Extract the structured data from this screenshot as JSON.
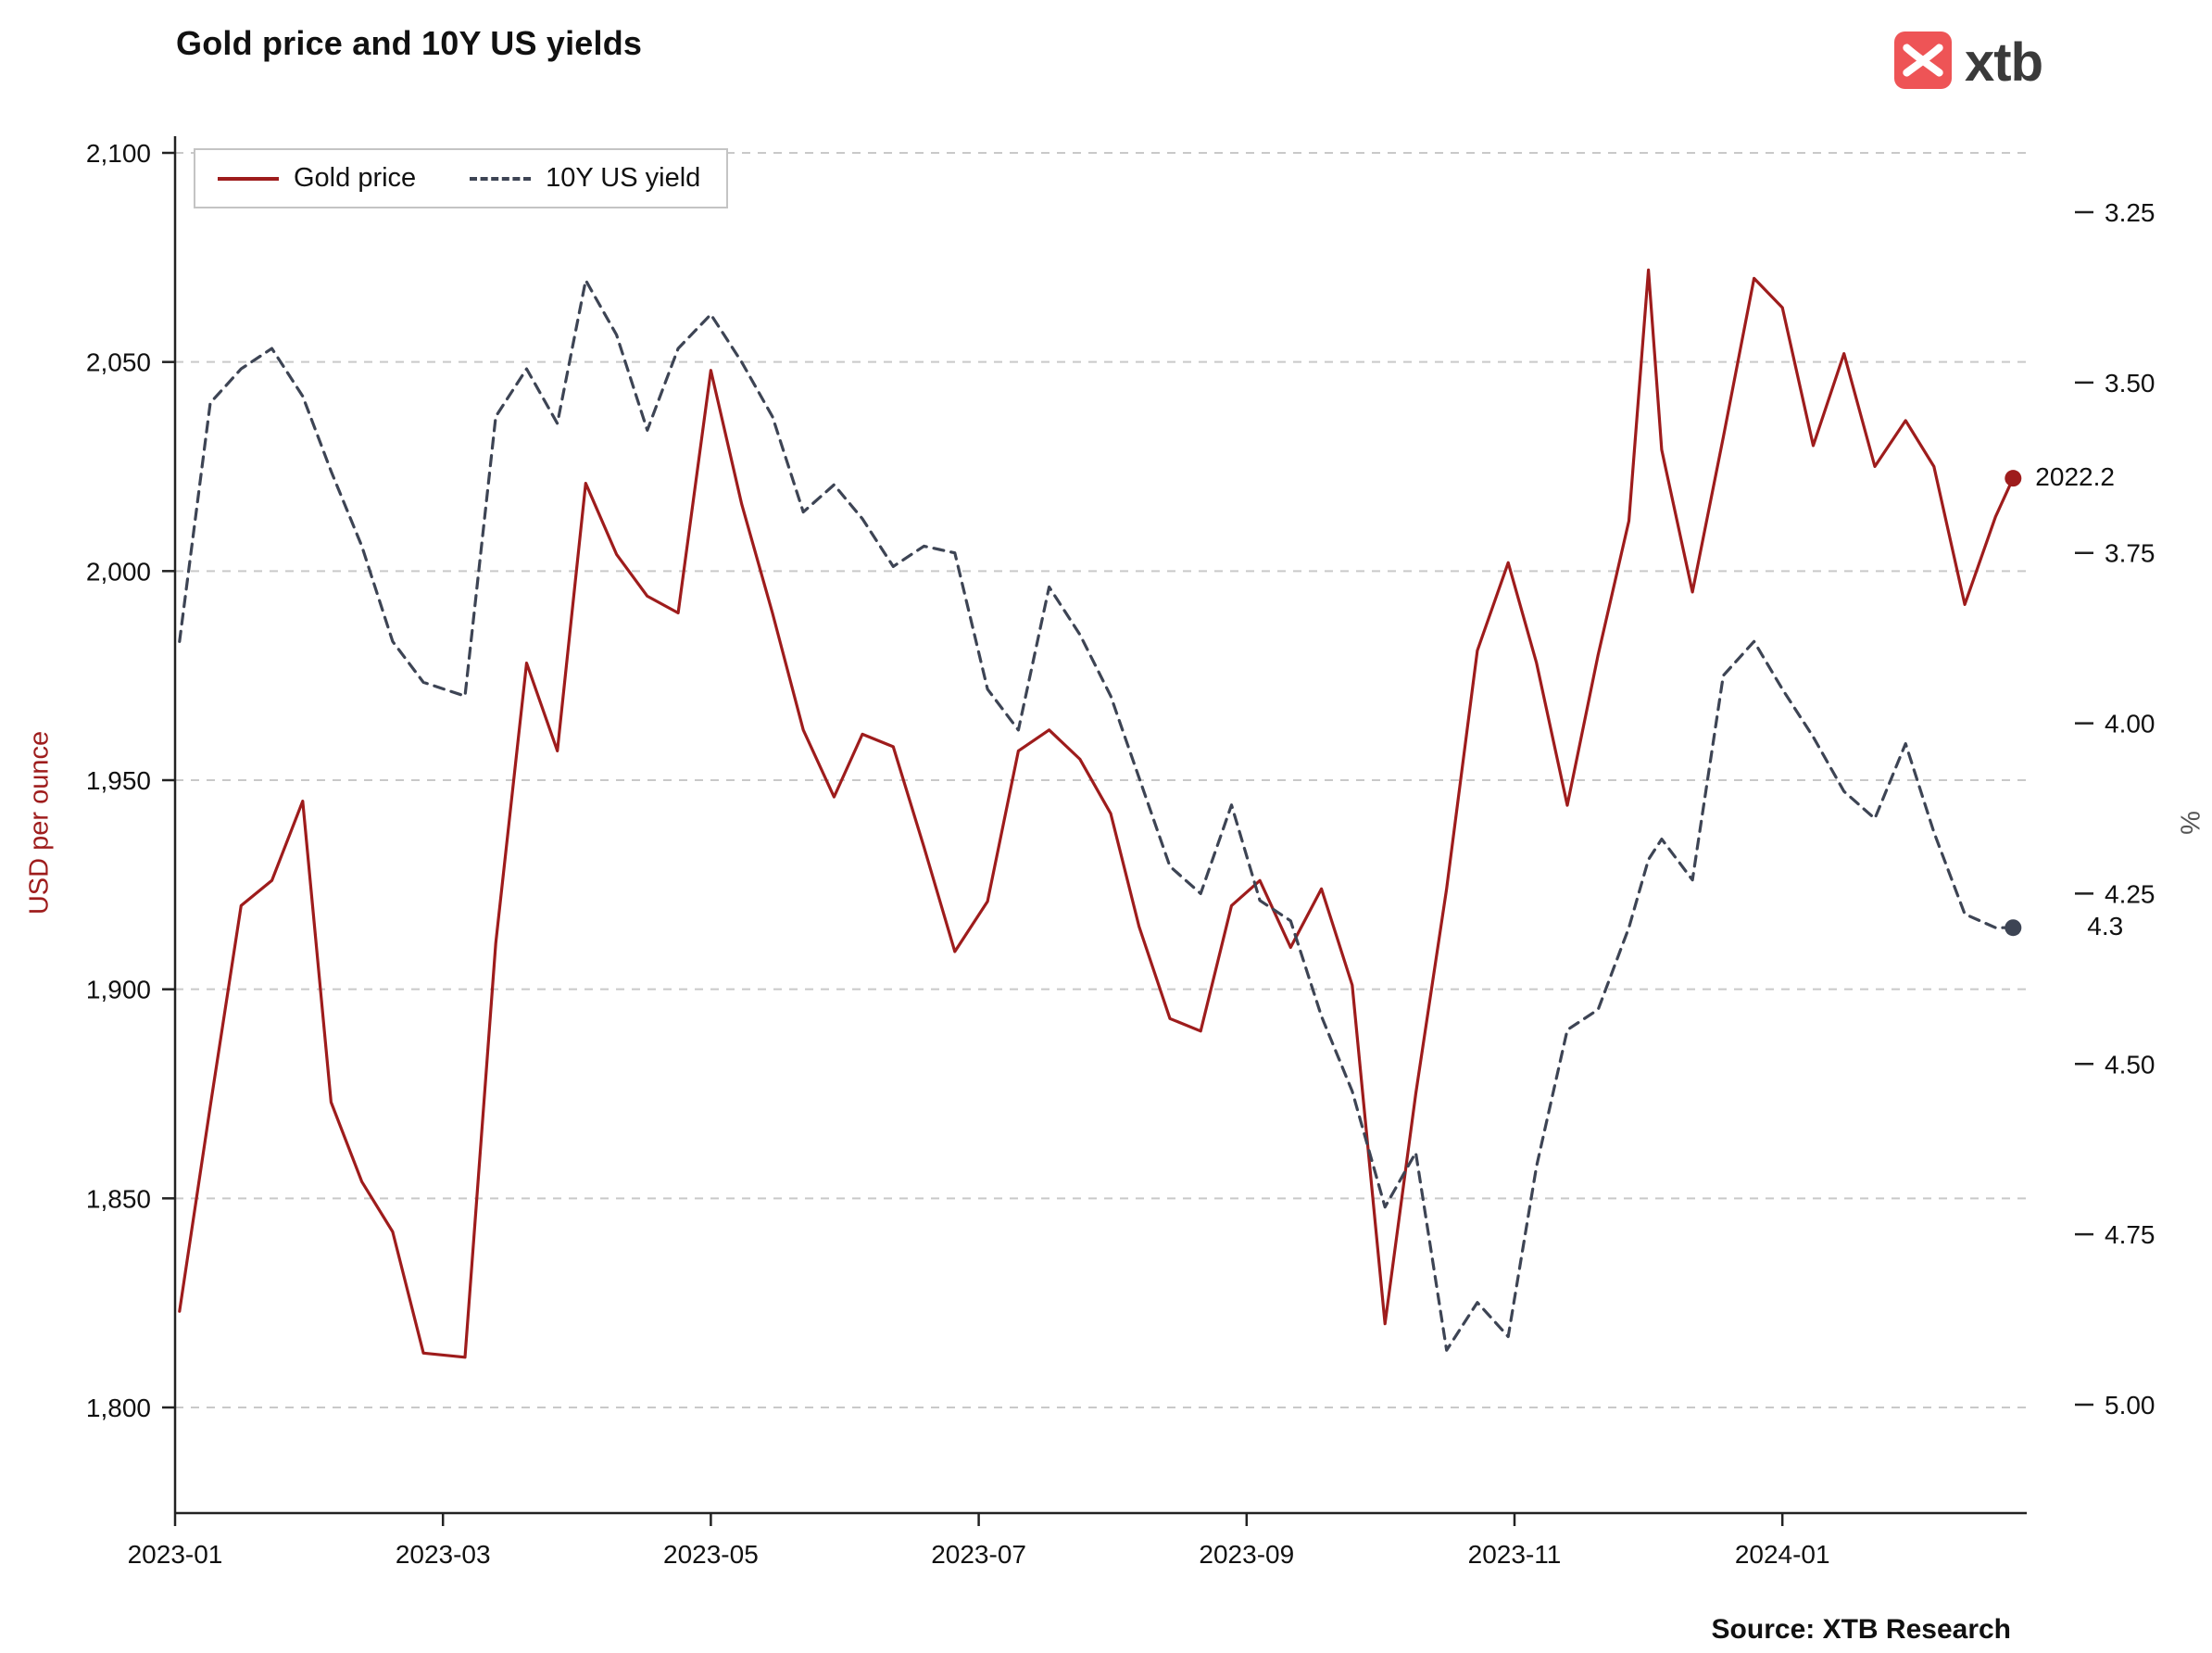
{
  "logo": {
    "text": "xtb",
    "brand_color": "#ee5456"
  },
  "source": "Source: XTB Research",
  "chart_data": {
    "type": "line",
    "title": "Gold price and 10Y US yields",
    "grid": "horizontal-dashed",
    "legend_position": "top-left-inside",
    "x_ticks": [
      "2023-01-01",
      "2023-03-01",
      "2023-05-01",
      "2023-07-01",
      "2023-09-01",
      "2023-11-01",
      "2024-01-01"
    ],
    "x_tick_labels": [
      "2023-01",
      "2023-03",
      "2023-05",
      "2023-07",
      "2023-09",
      "2023-11",
      "2024-01"
    ],
    "left_axis": {
      "label": "USD per ounce",
      "color": "#9e1c1c",
      "ticks": [
        1800,
        1850,
        1900,
        1950,
        2000,
        2050,
        2100
      ],
      "tick_labels": [
        "1,800",
        "1,850",
        "1,900",
        "1,950",
        "2,000",
        "2,050",
        "2,100"
      ],
      "range": [
        1775,
        2101
      ]
    },
    "right_axis": {
      "label": "%",
      "color": "#555555",
      "reversed": true,
      "ticks": [
        3.25,
        3.5,
        3.75,
        4.0,
        4.25,
        4.5,
        4.75,
        5.0
      ],
      "tick_labels": [
        "3.25",
        "3.50",
        "3.75",
        "4.00",
        "4.25",
        "4.50",
        "4.75",
        "5.00"
      ],
      "range": [
        3.2,
        5.05
      ]
    },
    "x": [
      "2023-01-02",
      "2023-01-09",
      "2023-01-16",
      "2023-01-23",
      "2023-01-30",
      "2023-02-06",
      "2023-02-13",
      "2023-02-20",
      "2023-02-27",
      "2023-03-06",
      "2023-03-13",
      "2023-03-20",
      "2023-03-27",
      "2023-04-03",
      "2023-04-10",
      "2023-04-17",
      "2023-04-24",
      "2023-05-01",
      "2023-05-08",
      "2023-05-15",
      "2023-05-22",
      "2023-05-29",
      "2023-06-05",
      "2023-06-12",
      "2023-06-19",
      "2023-06-26",
      "2023-07-03",
      "2023-07-10",
      "2023-07-17",
      "2023-07-24",
      "2023-07-31",
      "2023-08-07",
      "2023-08-14",
      "2023-08-21",
      "2023-08-28",
      "2023-09-04",
      "2023-09-11",
      "2023-09-18",
      "2023-09-25",
      "2023-10-02",
      "2023-10-09",
      "2023-10-16",
      "2023-10-23",
      "2023-10-30",
      "2023-11-06",
      "2023-11-13",
      "2023-11-20",
      "2023-11-27",
      "2023-12-01",
      "2023-12-04",
      "2023-12-11",
      "2023-12-18",
      "2023-12-25",
      "2024-01-01",
      "2024-01-08",
      "2024-01-15",
      "2024-01-22",
      "2024-01-29",
      "2024-02-05",
      "2024-02-12",
      "2024-02-19",
      "2024-02-23"
    ],
    "series": [
      {
        "name": "Gold price",
        "axis": "left",
        "unit": "USD per ounce",
        "line_style": "solid",
        "color": "#9e1c1c",
        "end_label": "2022.2",
        "values": [
          1823,
          1872,
          1920,
          1926,
          1945,
          1873,
          1854,
          1842,
          1813,
          1812,
          1911,
          1978,
          1957,
          2021,
          2004,
          1994,
          1990,
          2048,
          2016,
          1990,
          1962,
          1946,
          1961,
          1958,
          1934,
          1909,
          1921,
          1957,
          1962,
          1955,
          1942,
          1915,
          1893,
          1890,
          1920,
          1926,
          1910,
          1924,
          1901,
          1820,
          1875,
          1924,
          1981,
          2002,
          1978,
          1944,
          1980,
          2012,
          2072,
          2029,
          1995,
          2032,
          2070,
          2063,
          2030,
          2052,
          2025,
          2036,
          2025,
          1992,
          2013,
          2022.2
        ]
      },
      {
        "name": "10Y US yield",
        "axis": "right",
        "unit": "%",
        "line_style": "dashed",
        "color": "#3d4454",
        "end_label": "4.3",
        "values": [
          3.88,
          3.53,
          3.48,
          3.45,
          3.52,
          3.63,
          3.74,
          3.88,
          3.94,
          3.96,
          3.55,
          3.48,
          3.56,
          3.35,
          3.43,
          3.57,
          3.45,
          3.4,
          3.47,
          3.55,
          3.69,
          3.65,
          3.7,
          3.77,
          3.74,
          3.75,
          3.95,
          4.01,
          3.8,
          3.87,
          3.96,
          4.08,
          4.21,
          4.25,
          4.12,
          4.26,
          4.29,
          4.43,
          4.54,
          4.71,
          4.63,
          4.92,
          4.85,
          4.9,
          4.65,
          4.45,
          4.42,
          4.3,
          4.2,
          4.17,
          4.23,
          3.93,
          3.88,
          3.95,
          4.02,
          4.1,
          4.14,
          4.03,
          4.16,
          4.28,
          4.3,
          4.3
        ]
      }
    ]
  }
}
